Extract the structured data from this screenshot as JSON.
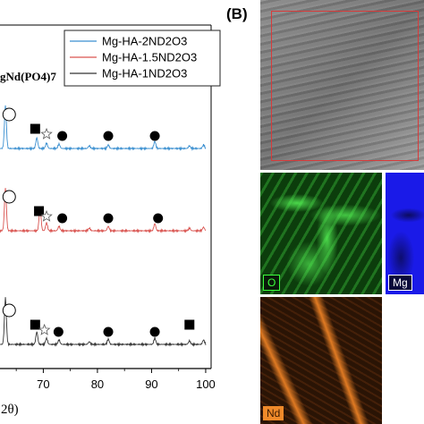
{
  "chart_data": {
    "type": "line",
    "title": "",
    "xlabel_fragment": "2θ)",
    "phase_label_fragment": "gNd(PO4)7",
    "xlim": [
      62,
      101
    ],
    "x_ticks": [
      70,
      80,
      90,
      100
    ],
    "legend_placement": "top-right",
    "series": [
      {
        "name": "Mg-HA-2ND2O3",
        "color": "#3a8fd0",
        "peaks": [
          [
            63.0,
            48
          ],
          [
            68.8,
            12
          ],
          [
            70.6,
            6
          ],
          [
            72.9,
            5
          ],
          [
            78.5,
            3
          ],
          [
            82.0,
            4
          ],
          [
            90.6,
            8
          ],
          [
            97.0,
            3
          ],
          [
            99.6,
            4
          ]
        ]
      },
      {
        "name": "Mg-HA-1.5ND2O3",
        "color": "#d9534f",
        "peaks": [
          [
            63.0,
            48
          ],
          [
            69.4,
            26
          ],
          [
            70.6,
            9
          ],
          [
            72.9,
            5
          ],
          [
            78.5,
            3
          ],
          [
            82.0,
            5
          ],
          [
            90.6,
            8
          ],
          [
            97.0,
            3
          ],
          [
            99.6,
            4
          ]
        ]
      },
      {
        "name": "Mg-HA-1ND2O3",
        "color": "#333333",
        "peaks": [
          [
            63.0,
            52
          ],
          [
            68.8,
            14
          ],
          [
            70.6,
            7
          ],
          [
            72.9,
            5
          ],
          [
            78.5,
            3
          ],
          [
            82.0,
            6
          ],
          [
            90.6,
            7
          ],
          [
            97.0,
            4
          ],
          [
            99.6,
            5
          ]
        ]
      }
    ],
    "markers": [
      {
        "trace": 0,
        "symbol": "circle-open",
        "x": 63.2
      },
      {
        "trace": 0,
        "symbol": "square",
        "x": 68.5
      },
      {
        "trace": 0,
        "symbol": "star-open",
        "x": 70.6
      },
      {
        "trace": 0,
        "symbol": "circle",
        "x": 73.5
      },
      {
        "trace": 0,
        "symbol": "circle",
        "x": 82.0
      },
      {
        "trace": 0,
        "symbol": "circle",
        "x": 90.6
      },
      {
        "trace": 1,
        "symbol": "circle-open",
        "x": 63.2
      },
      {
        "trace": 1,
        "symbol": "square",
        "x": 69.2
      },
      {
        "trace": 1,
        "symbol": "star-open",
        "x": 70.6
      },
      {
        "trace": 1,
        "symbol": "circle",
        "x": 73.5
      },
      {
        "trace": 1,
        "symbol": "circle",
        "x": 82.0
      },
      {
        "trace": 1,
        "symbol": "circle",
        "x": 91.2
      },
      {
        "trace": 2,
        "symbol": "circle-open",
        "x": 63.2
      },
      {
        "trace": 2,
        "symbol": "square",
        "x": 68.5
      },
      {
        "trace": 2,
        "symbol": "star-open",
        "x": 70.2
      },
      {
        "trace": 2,
        "symbol": "circle",
        "x": 72.8
      },
      {
        "trace": 2,
        "symbol": "circle",
        "x": 82.0
      },
      {
        "trace": 2,
        "symbol": "circle",
        "x": 90.6
      },
      {
        "trace": 2,
        "symbol": "square",
        "x": 97.0
      }
    ]
  },
  "panel_b": {
    "label": "(B)",
    "maps": {
      "o": "O",
      "mg": "Mg",
      "nd": "Nd"
    }
  }
}
